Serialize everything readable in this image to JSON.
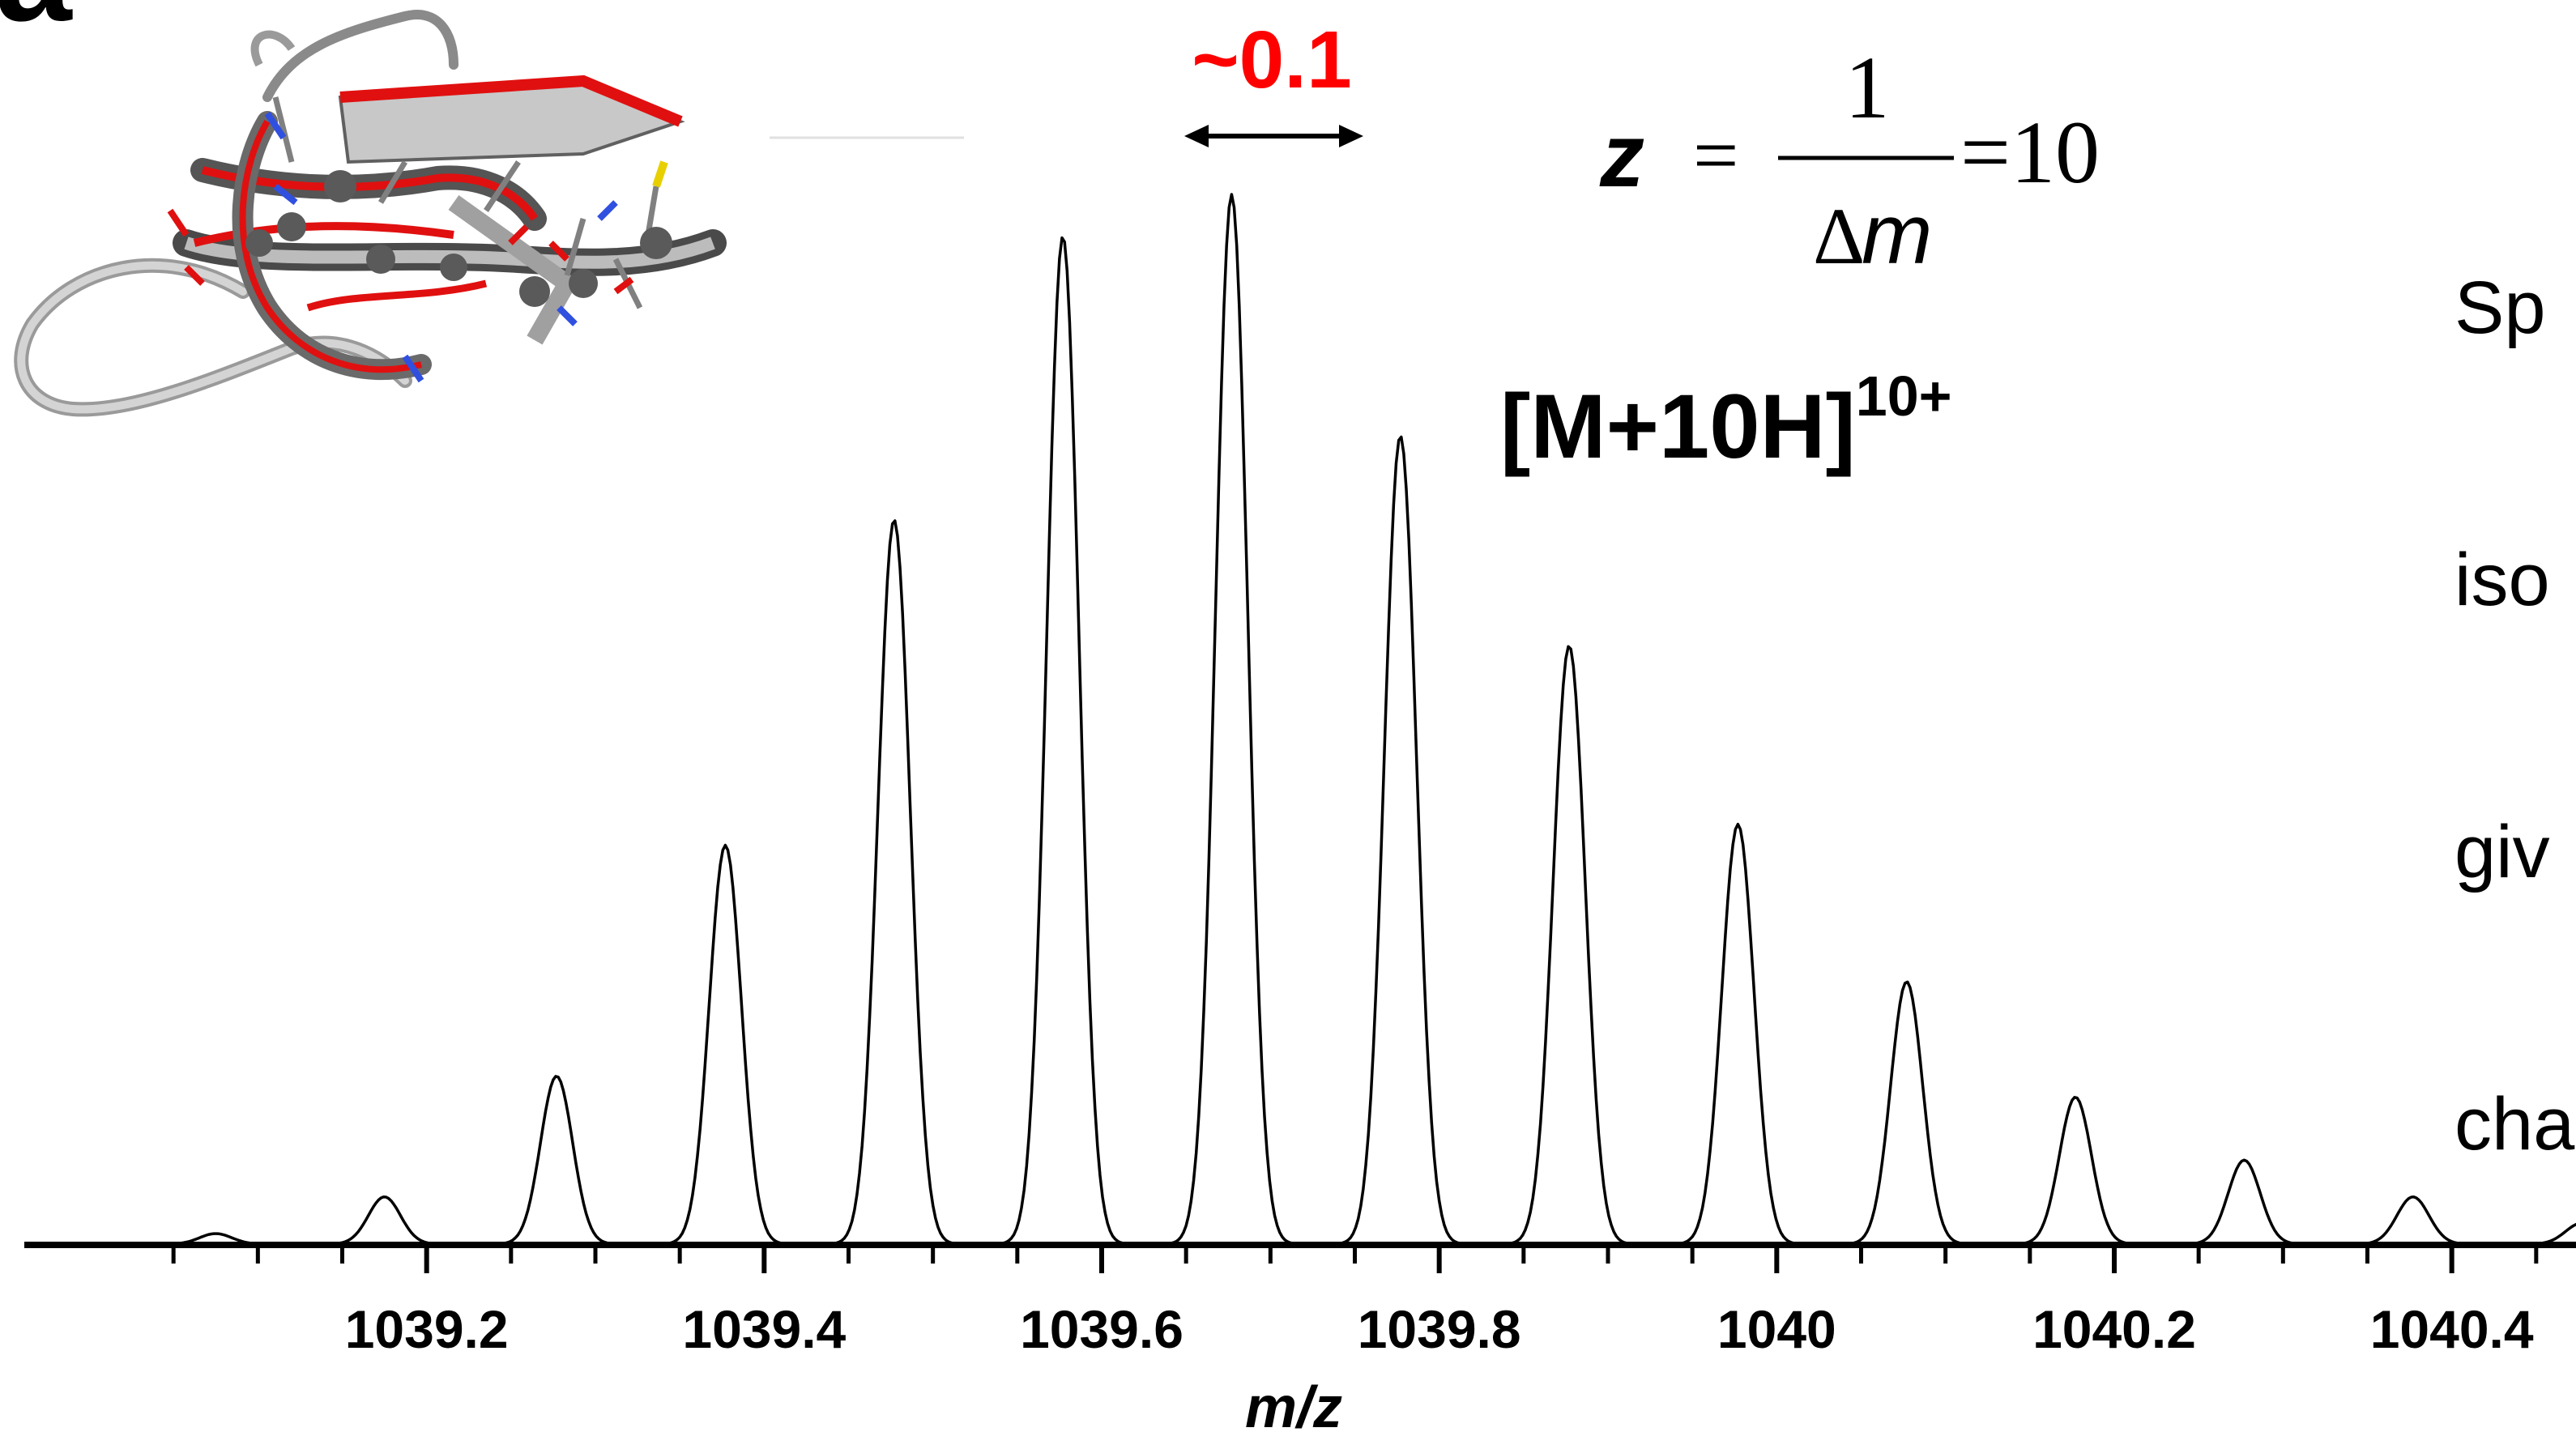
{
  "panel_label": "a",
  "side_caption_lines": [
    "Sp",
    "iso",
    "giv",
    "cha"
  ],
  "spacing_label": "~0.1",
  "equation": {
    "lhs": "z",
    "equals": "=",
    "numerator": "1",
    "denominator_delta": "Δ",
    "denominator_var": "m",
    "rhs": "=10"
  },
  "ion_label": {
    "base": "[M+10H]",
    "superscript": "10+"
  },
  "colors": {
    "spacing_label": "#ff0000",
    "trace": "#000000",
    "protein_highlight": "#e01010",
    "protein_ribbon": "#b8b8b8"
  },
  "chart_data": {
    "type": "line",
    "title": "",
    "xlabel": "m/z",
    "ylabel": "",
    "xlim": [
      1039.0,
      1040.5
    ],
    "ylim": [
      0,
      100
    ],
    "x_ticks_labeled": [
      1039.2,
      1039.4,
      1039.6,
      1039.8,
      1040,
      1040.2,
      1040.4
    ],
    "x_tick_labels": [
      "1039.2",
      "1039.4",
      "1039.6",
      "1039.8",
      "1040",
      "1040.2",
      "1040.4"
    ],
    "minor_tick_step": 0.05,
    "grid": false,
    "legend": "none",
    "series": [
      {
        "values_note_free": true,
        "peaks": [
          {
            "x": 1039.075,
            "y": 1
          },
          {
            "x": 1039.175,
            "y": 4.5
          },
          {
            "x": 1039.277,
            "y": 16
          },
          {
            "x": 1039.377,
            "y": 38
          },
          {
            "x": 1039.477,
            "y": 69
          },
          {
            "x": 1039.577,
            "y": 96
          },
          {
            "x": 1039.677,
            "y": 100
          },
          {
            "x": 1039.777,
            "y": 77
          },
          {
            "x": 1039.877,
            "y": 57
          },
          {
            "x": 1039.977,
            "y": 40
          },
          {
            "x": 1040.077,
            "y": 25
          },
          {
            "x": 1040.177,
            "y": 14
          },
          {
            "x": 1040.277,
            "y": 8
          },
          {
            "x": 1040.377,
            "y": 4.5
          },
          {
            "x": 1040.477,
            "y": 2
          }
        ]
      }
    ]
  }
}
